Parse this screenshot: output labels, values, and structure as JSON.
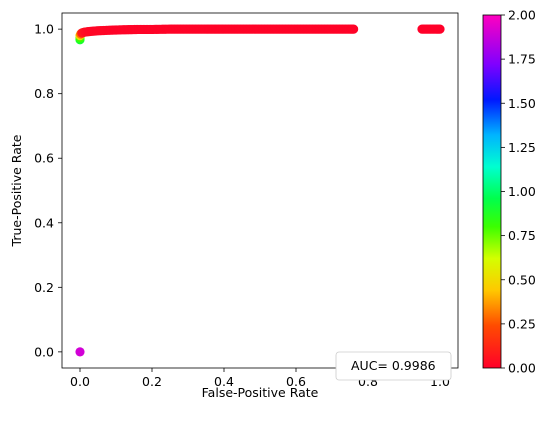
{
  "chart_data": {
    "type": "scatter",
    "title": "",
    "xlabel": "False-Positive Rate",
    "ylabel": "True-Positive Rate",
    "xlim": [
      -0.05,
      1.05
    ],
    "ylim": [
      -0.05,
      1.05
    ],
    "x_ticks": [
      0.0,
      0.2,
      0.4,
      0.6,
      0.8,
      1.0
    ],
    "y_ticks": [
      0.0,
      0.2,
      0.4,
      0.6,
      0.8,
      1.0
    ],
    "x_tick_labels": [
      "0.0",
      "0.2",
      "0.4",
      "0.6",
      "0.8",
      "1.0"
    ],
    "y_tick_labels": [
      "0.0",
      "0.2",
      "0.4",
      "0.6",
      "0.8",
      "1.0"
    ],
    "grid": false,
    "legend": {
      "text": "AUC= 0.9986",
      "placement": "lower-right"
    },
    "colormap": "gist_rainbow",
    "colorbar": {
      "range": [
        0.0,
        2.0
      ],
      "ticks": [
        0.0,
        0.25,
        0.5,
        0.75,
        1.0,
        1.25,
        1.5,
        1.75,
        2.0
      ],
      "tick_labels": [
        "0.00",
        "0.25",
        "0.50",
        "0.75",
        "1.00",
        "1.25",
        "1.50",
        "1.75",
        "2.00"
      ]
    },
    "points": [
      {
        "x": 0.0,
        "y": 0.0,
        "c": 1.9
      },
      {
        "x": 0.0,
        "y": 0.967,
        "c": 0.9
      },
      {
        "x": 0.0,
        "y": 0.973,
        "c": 0.8
      },
      {
        "x": 0.0,
        "y": 0.98,
        "c": 0.5
      },
      {
        "x": 0.002,
        "y": 0.985,
        "c": 0.3
      },
      {
        "x": 0.005,
        "y": 0.988,
        "c": 0.1
      },
      {
        "x": 0.01,
        "y": 0.99,
        "c": 0.05
      },
      {
        "x": 0.02,
        "y": 0.992,
        "c": 0.03
      },
      {
        "x": 0.03,
        "y": 0.993,
        "c": 0.02
      },
      {
        "x": 0.05,
        "y": 0.995,
        "c": 0.02
      },
      {
        "x": 0.07,
        "y": 0.996,
        "c": 0.02
      },
      {
        "x": 0.09,
        "y": 0.997,
        "c": 0.01
      },
      {
        "x": 0.12,
        "y": 0.998,
        "c": 0.01
      },
      {
        "x": 0.16,
        "y": 0.999,
        "c": 0.01
      },
      {
        "x": 0.2,
        "y": 0.999,
        "c": 0.01
      },
      {
        "x": 0.25,
        "y": 1.0,
        "c": 0.01
      },
      {
        "x": 0.3,
        "y": 1.0,
        "c": 0.01
      },
      {
        "x": 0.35,
        "y": 1.0,
        "c": 0.01
      },
      {
        "x": 0.4,
        "y": 1.0,
        "c": 0.01
      },
      {
        "x": 0.45,
        "y": 1.0,
        "c": 0.01
      },
      {
        "x": 0.5,
        "y": 1.0,
        "c": 0.01
      },
      {
        "x": 0.55,
        "y": 1.0,
        "c": 0.01
      },
      {
        "x": 0.6,
        "y": 1.0,
        "c": 0.01
      },
      {
        "x": 0.65,
        "y": 1.0,
        "c": 0.01
      },
      {
        "x": 0.7,
        "y": 1.0,
        "c": 0.01
      },
      {
        "x": 0.75,
        "y": 1.0,
        "c": 0.01
      },
      {
        "x": 0.76,
        "y": 1.0,
        "c": 0.01
      },
      {
        "x": 0.95,
        "y": 1.0,
        "c": 0.0
      },
      {
        "x": 0.97,
        "y": 1.0,
        "c": 0.0
      },
      {
        "x": 0.99,
        "y": 1.0,
        "c": 0.0
      },
      {
        "x": 1.0,
        "y": 1.0,
        "c": 0.0
      }
    ]
  }
}
